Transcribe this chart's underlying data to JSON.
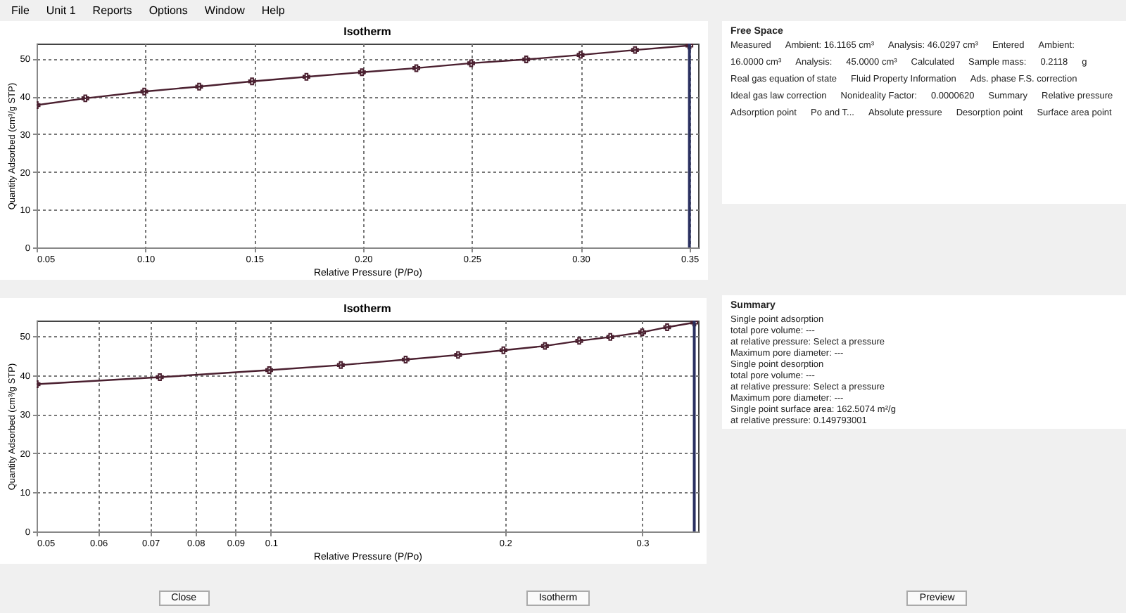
{
  "chart_data": [
    {
      "type": "other",
      "annotations": [
        "File",
        "Unit 1",
        "Reports",
        "Options",
        "Window",
        "Help"
      ]
    },
    {
      "type": "line",
      "title": "Isotherm",
      "xlabel": "Relative Pressure (P/Po)",
      "ylabel": "Quantity Adsorbed (cm³/g STP)",
      "x": [
        0.05,
        0.0724,
        0.0995,
        0.1247,
        0.149,
        0.174,
        0.1995,
        0.2245,
        0.2497,
        0.275,
        0.3,
        0.325,
        0.35
      ],
      "series": [
        {
          "color": "#4a1f2f",
          "values": [
            37.7,
            39.5,
            41.3,
            42.6,
            44.0,
            45.2,
            46.4,
            47.5,
            48.8,
            49.8,
            51.0,
            52.3,
            53.5
          ]
        }
      ],
      "xlim": [
        0.05,
        0.354
      ],
      "ylim": [
        0,
        54
      ],
      "xticks": [
        {
          "value": 0.05,
          "label": "0.05"
        },
        {
          "value": 0.1,
          "label": "0.10"
        },
        {
          "value": 0.15,
          "label": "0.15"
        },
        {
          "value": 0.2,
          "label": "0.20"
        },
        {
          "value": 0.25,
          "label": "0.25"
        },
        {
          "value": 0.3,
          "label": "0.30"
        },
        {
          "value": 0.35,
          "label": "0.35"
        }
      ],
      "yticks": [
        0,
        10,
        20,
        30,
        40,
        50
      ],
      "ref_lines": [
        {
          "axis": "x",
          "value": 0.35,
          "color": "#2a3060"
        }
      ],
      "grid": true,
      "marker": "cross"
    },
    {
      "type": "line",
      "title": "Isotherm",
      "xlabel": "Relative Pressure (P/Po)",
      "ylabel": "Quantity Adsorbed (cm³/g STP)",
      "x": [
        0.05,
        0.072,
        0.0995,
        0.123,
        0.149,
        0.174,
        0.199,
        0.225,
        0.249,
        0.273,
        0.3,
        0.323,
        0.35
      ],
      "series": [
        {
          "color": "#4a1f2f",
          "values": [
            37.7,
            39.5,
            41.3,
            42.6,
            44.0,
            45.2,
            46.4,
            47.5,
            48.8,
            49.8,
            51.0,
            52.3,
            53.5
          ]
        }
      ],
      "xlim": [
        0.05,
        0.354
      ],
      "ylim": [
        0,
        54
      ],
      "log": "x",
      "xticks": [
        0.05,
        0.06,
        0.07,
        0.08,
        0.09,
        0.1,
        0.2,
        0.3
      ],
      "yticks": [
        0,
        10,
        20,
        30,
        40,
        50
      ],
      "ref_lines": [
        {
          "axis": "x",
          "value": 0.35,
          "color": "#2a3060"
        }
      ],
      "grid": true,
      "marker": "cross"
    },
    {
      "type": "other",
      "title": "Free Space",
      "annotations": [
        "Measured",
        "Ambient: 16.1165 cm³",
        "Analysis: 46.0297 cm³",
        "Entered",
        "Ambient:",
        "16.0000 cm³",
        "Analysis:",
        "45.0000 cm³",
        "Calculated",
        "Sample mass:",
        "0.2118",
        "g",
        "Real gas equation of state",
        "Fluid Property Information",
        "Ads. phase F.S. correction",
        "Ideal gas law correction",
        "Nonideality Factor:",
        "0.0000620",
        "Summary",
        "Relative pressure",
        "Adsorption point",
        "Po and T...",
        "Absolute pressure",
        "Desorption point",
        "Surface area point"
      ]
    },
    {
      "type": "other",
      "title": "Summary",
      "annotations": [
        "Single point adsorption",
        "total pore volume: ---",
        "at relative pressure: Select a pressure",
        "Maximum pore diameter: ---",
        "Single point desorption",
        "total pore volume: ---",
        "at relative pressure: Select a pressure",
        "Maximum pore diameter: ---",
        "Single point surface area: 162.5074 m²/g",
        "at relative pressure: 0.149793001"
      ]
    },
    {
      "type": "other",
      "annotations": [
        "Close",
        "Isotherm",
        "Preview"
      ]
    }
  ]
}
